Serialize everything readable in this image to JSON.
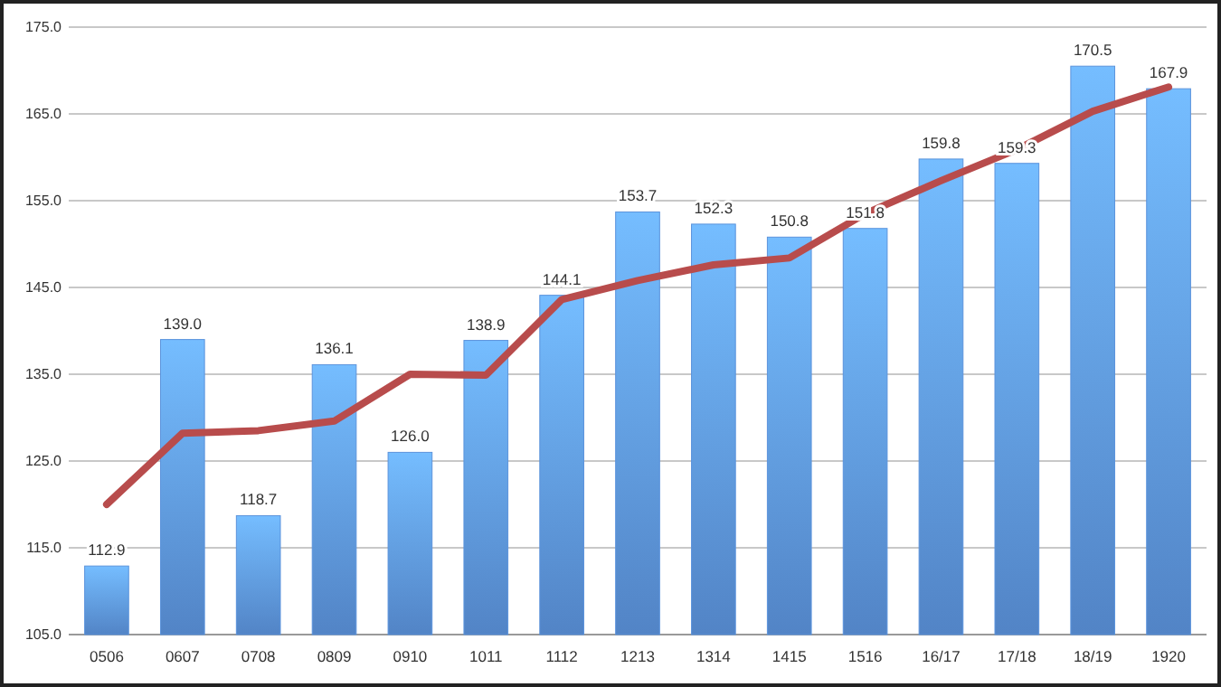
{
  "chart_data": {
    "type": "bar",
    "categories": [
      "0506",
      "0607",
      "0708",
      "0809",
      "0910",
      "1011",
      "1112",
      "1213",
      "1314",
      "1415",
      "1516",
      "16/17",
      "17/18",
      "18/19",
      "1920"
    ],
    "series": [
      {
        "color": "#5b93dc",
        "values": [
          112.9,
          139.0,
          118.7,
          136.1,
          126.0,
          138.9,
          144.1,
          153.7,
          152.3,
          150.8,
          151.8,
          159.8,
          159.3,
          170.5,
          167.9
        ],
        "value_labels": [
          "112.9",
          "139.0",
          "118.7",
          "136.1",
          "126.0",
          "138.9",
          "144.1",
          "153.7",
          "152.3",
          "150.8",
          "151.8",
          "159.8",
          "159.3",
          "170.5",
          "167.9"
        ]
      },
      {
        "type": "line",
        "color": "#b84c4c",
        "marker": "none",
        "values": [
          120.0,
          128.2,
          128.5,
          129.6,
          135.0,
          134.9,
          143.6,
          145.8,
          147.6,
          148.4,
          153.5,
          157.3,
          160.9,
          165.3,
          168.1
        ]
      }
    ],
    "ylim": [
      105,
      175
    ],
    "yticks": [
      {
        "value": 105,
        "label": "105.0"
      },
      {
        "value": 115,
        "label": "115.0"
      },
      {
        "value": 125,
        "label": "125.0"
      },
      {
        "value": 135,
        "label": "135.0"
      },
      {
        "value": 145,
        "label": "145.0"
      },
      {
        "value": 155,
        "label": "155.0"
      },
      {
        "value": 165,
        "label": "165.0"
      },
      {
        "value": 175,
        "label": "175.0"
      }
    ],
    "grid": "y"
  }
}
